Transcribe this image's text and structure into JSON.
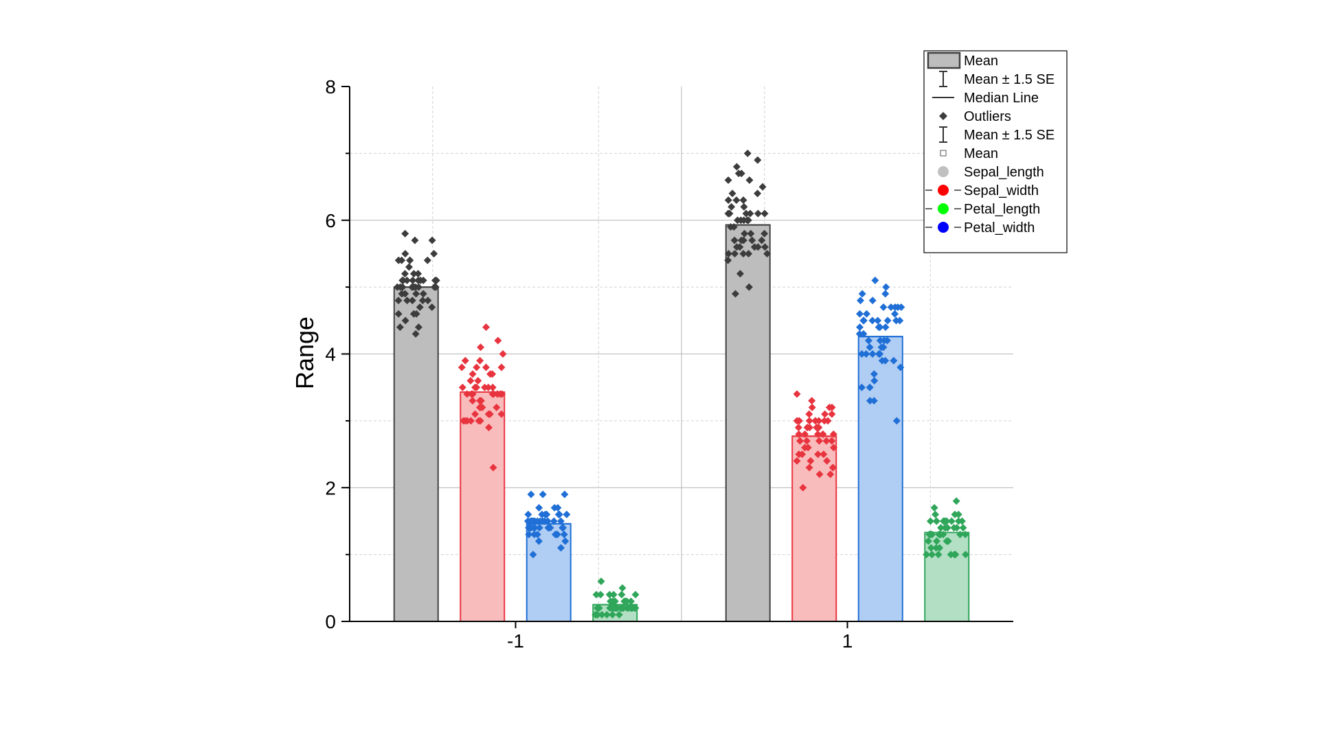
{
  "chart_data": {
    "type": "bar",
    "title": "",
    "xlabel": "",
    "ylabel": "Range",
    "ylim": [
      0,
      8
    ],
    "yticks": [
      "0",
      "2",
      "4",
      "6",
      "8"
    ],
    "categories": [
      "-1",
      "1"
    ],
    "grid": true,
    "legend_position": "top-right",
    "series": [
      {
        "name": "Sepal_length",
        "color": "#bdbdbd",
        "edge": "#404040",
        "point_color": "#3c3c3c",
        "values": [
          5.0,
          5.93
        ],
        "points": [
          [
            4.3,
            4.4,
            4.4,
            4.5,
            4.6,
            4.6,
            4.6,
            4.7,
            4.7,
            4.8,
            4.8,
            4.8,
            4.8,
            4.8,
            4.9,
            4.9,
            4.9,
            4.9,
            5.0,
            5.0,
            5.0,
            5.0,
            5.0,
            5.0,
            5.0,
            5.0,
            5.1,
            5.1,
            5.1,
            5.1,
            5.1,
            5.1,
            5.1,
            5.1,
            5.2,
            5.2,
            5.2,
            5.3,
            5.4,
            5.4,
            5.4,
            5.4,
            5.4,
            5.5,
            5.5,
            5.7,
            5.7,
            5.8,
            5.1,
            5.0
          ],
          [
            4.9,
            5.0,
            5.2,
            5.4,
            5.5,
            5.5,
            5.5,
            5.5,
            5.5,
            5.6,
            5.6,
            5.6,
            5.6,
            5.6,
            5.7,
            5.7,
            5.7,
            5.7,
            5.7,
            5.8,
            5.8,
            5.8,
            5.9,
            5.9,
            6.0,
            6.0,
            6.0,
            6.0,
            6.0,
            6.1,
            6.1,
            6.1,
            6.1,
            6.1,
            6.1,
            6.2,
            6.2,
            6.3,
            6.3,
            6.3,
            6.4,
            6.4,
            6.5,
            6.6,
            6.6,
            6.7,
            6.7,
            6.8,
            6.9,
            7.0
          ]
        ]
      },
      {
        "name": "Sepal_width",
        "color": "#f9bcbc",
        "edge": "#e8343f",
        "point_color": "#e8343f",
        "values": [
          3.43,
          2.77
        ],
        "points": [
          [
            2.3,
            2.9,
            3.0,
            3.0,
            3.0,
            3.0,
            3.0,
            3.0,
            3.1,
            3.1,
            3.1,
            3.1,
            3.2,
            3.2,
            3.2,
            3.2,
            3.2,
            3.3,
            3.3,
            3.4,
            3.4,
            3.4,
            3.4,
            3.4,
            3.4,
            3.4,
            3.4,
            3.4,
            3.5,
            3.5,
            3.5,
            3.5,
            3.5,
            3.5,
            3.6,
            3.6,
            3.7,
            3.7,
            3.7,
            3.8,
            3.8,
            3.8,
            3.8,
            3.9,
            3.9,
            4.0,
            4.1,
            4.2,
            4.4,
            3.3
          ],
          [
            2.0,
            2.2,
            2.2,
            2.3,
            2.3,
            2.3,
            2.4,
            2.4,
            2.4,
            2.5,
            2.5,
            2.5,
            2.5,
            2.6,
            2.6,
            2.6,
            2.7,
            2.7,
            2.7,
            2.7,
            2.7,
            2.8,
            2.8,
            2.8,
            2.8,
            2.8,
            2.8,
            2.9,
            2.9,
            2.9,
            2.9,
            2.9,
            2.9,
            2.9,
            3.0,
            3.0,
            3.0,
            3.0,
            3.0,
            3.0,
            3.0,
            3.0,
            3.1,
            3.1,
            3.1,
            3.2,
            3.2,
            3.2,
            3.3,
            3.4
          ]
        ]
      },
      {
        "name": "Petal_length",
        "color": "#b3e0c5",
        "edge": "#2fa65a",
        "point_color": "#2fa65a",
        "values": [
          0.25,
          1.33
        ],
        "points": [
          [
            0.1,
            0.1,
            0.1,
            0.1,
            0.1,
            0.1,
            0.1,
            0.2,
            0.2,
            0.2,
            0.2,
            0.2,
            0.2,
            0.2,
            0.2,
            0.2,
            0.2,
            0.2,
            0.2,
            0.2,
            0.2,
            0.2,
            0.2,
            0.2,
            0.2,
            0.2,
            0.2,
            0.2,
            0.2,
            0.2,
            0.2,
            0.2,
            0.2,
            0.2,
            0.2,
            0.3,
            0.3,
            0.3,
            0.3,
            0.3,
            0.3,
            0.3,
            0.4,
            0.4,
            0.4,
            0.4,
            0.4,
            0.4,
            0.5,
            0.6
          ],
          [
            1.0,
            1.0,
            1.0,
            1.0,
            1.0,
            1.0,
            1.0,
            1.1,
            1.1,
            1.1,
            1.2,
            1.2,
            1.2,
            1.2,
            1.2,
            1.3,
            1.3,
            1.3,
            1.3,
            1.3,
            1.3,
            1.3,
            1.3,
            1.3,
            1.3,
            1.3,
            1.3,
            1.3,
            1.4,
            1.4,
            1.4,
            1.4,
            1.4,
            1.4,
            1.4,
            1.5,
            1.5,
            1.5,
            1.5,
            1.5,
            1.5,
            1.5,
            1.5,
            1.5,
            1.5,
            1.6,
            1.6,
            1.6,
            1.7,
            1.8
          ]
        ]
      },
      {
        "name": "Petal_width",
        "color": "#b0cdf3",
        "edge": "#1f6fd6",
        "point_color": "#1f6fd6",
        "values": [
          1.46,
          4.26
        ],
        "points": [
          [
            1.0,
            1.1,
            1.2,
            1.2,
            1.3,
            1.3,
            1.3,
            1.3,
            1.3,
            1.3,
            1.3,
            1.4,
            1.4,
            1.4,
            1.4,
            1.4,
            1.4,
            1.4,
            1.4,
            1.4,
            1.4,
            1.4,
            1.4,
            1.4,
            1.5,
            1.5,
            1.5,
            1.5,
            1.5,
            1.5,
            1.5,
            1.5,
            1.5,
            1.5,
            1.5,
            1.5,
            1.5,
            1.6,
            1.6,
            1.6,
            1.6,
            1.6,
            1.6,
            1.6,
            1.7,
            1.7,
            1.7,
            1.9,
            1.9,
            1.9
          ],
          [
            3.0,
            3.3,
            3.3,
            3.5,
            3.5,
            3.6,
            3.7,
            3.8,
            3.9,
            3.9,
            3.9,
            4.0,
            4.0,
            4.0,
            4.0,
            4.0,
            4.1,
            4.1,
            4.1,
            4.2,
            4.2,
            4.2,
            4.2,
            4.3,
            4.3,
            4.4,
            4.4,
            4.4,
            4.4,
            4.5,
            4.5,
            4.5,
            4.5,
            4.5,
            4.5,
            4.5,
            4.6,
            4.6,
            4.6,
            4.7,
            4.7,
            4.7,
            4.7,
            4.7,
            4.8,
            4.8,
            4.9,
            4.9,
            5.0,
            5.1
          ]
        ]
      }
    ],
    "bar_order": [
      [
        "Sepal_length",
        "Sepal_width",
        "Petal_width",
        "Petal_length"
      ],
      [
        "Sepal_length",
        "Sepal_width",
        "Petal_width",
        "Petal_length"
      ]
    ],
    "legend": [
      {
        "kind": "box",
        "label": "Mean"
      },
      {
        "kind": "errorbar",
        "label": "Mean ± 1.5 SE"
      },
      {
        "kind": "line",
        "label": "Median Line"
      },
      {
        "kind": "diamond",
        "label": "Outliers"
      },
      {
        "kind": "errorbar",
        "label": "Mean ± 1.5 SE"
      },
      {
        "kind": "square",
        "label": "Mean"
      },
      {
        "kind": "dot",
        "color": "#c0c0c0",
        "label": "Sepal_length"
      },
      {
        "kind": "dot-line",
        "color": "#ff0000",
        "label": "Sepal_width"
      },
      {
        "kind": "dot-line",
        "color": "#00ff00",
        "label": "Petal_length"
      },
      {
        "kind": "dot-line",
        "color": "#0000ff",
        "label": "Petal_width"
      }
    ]
  }
}
